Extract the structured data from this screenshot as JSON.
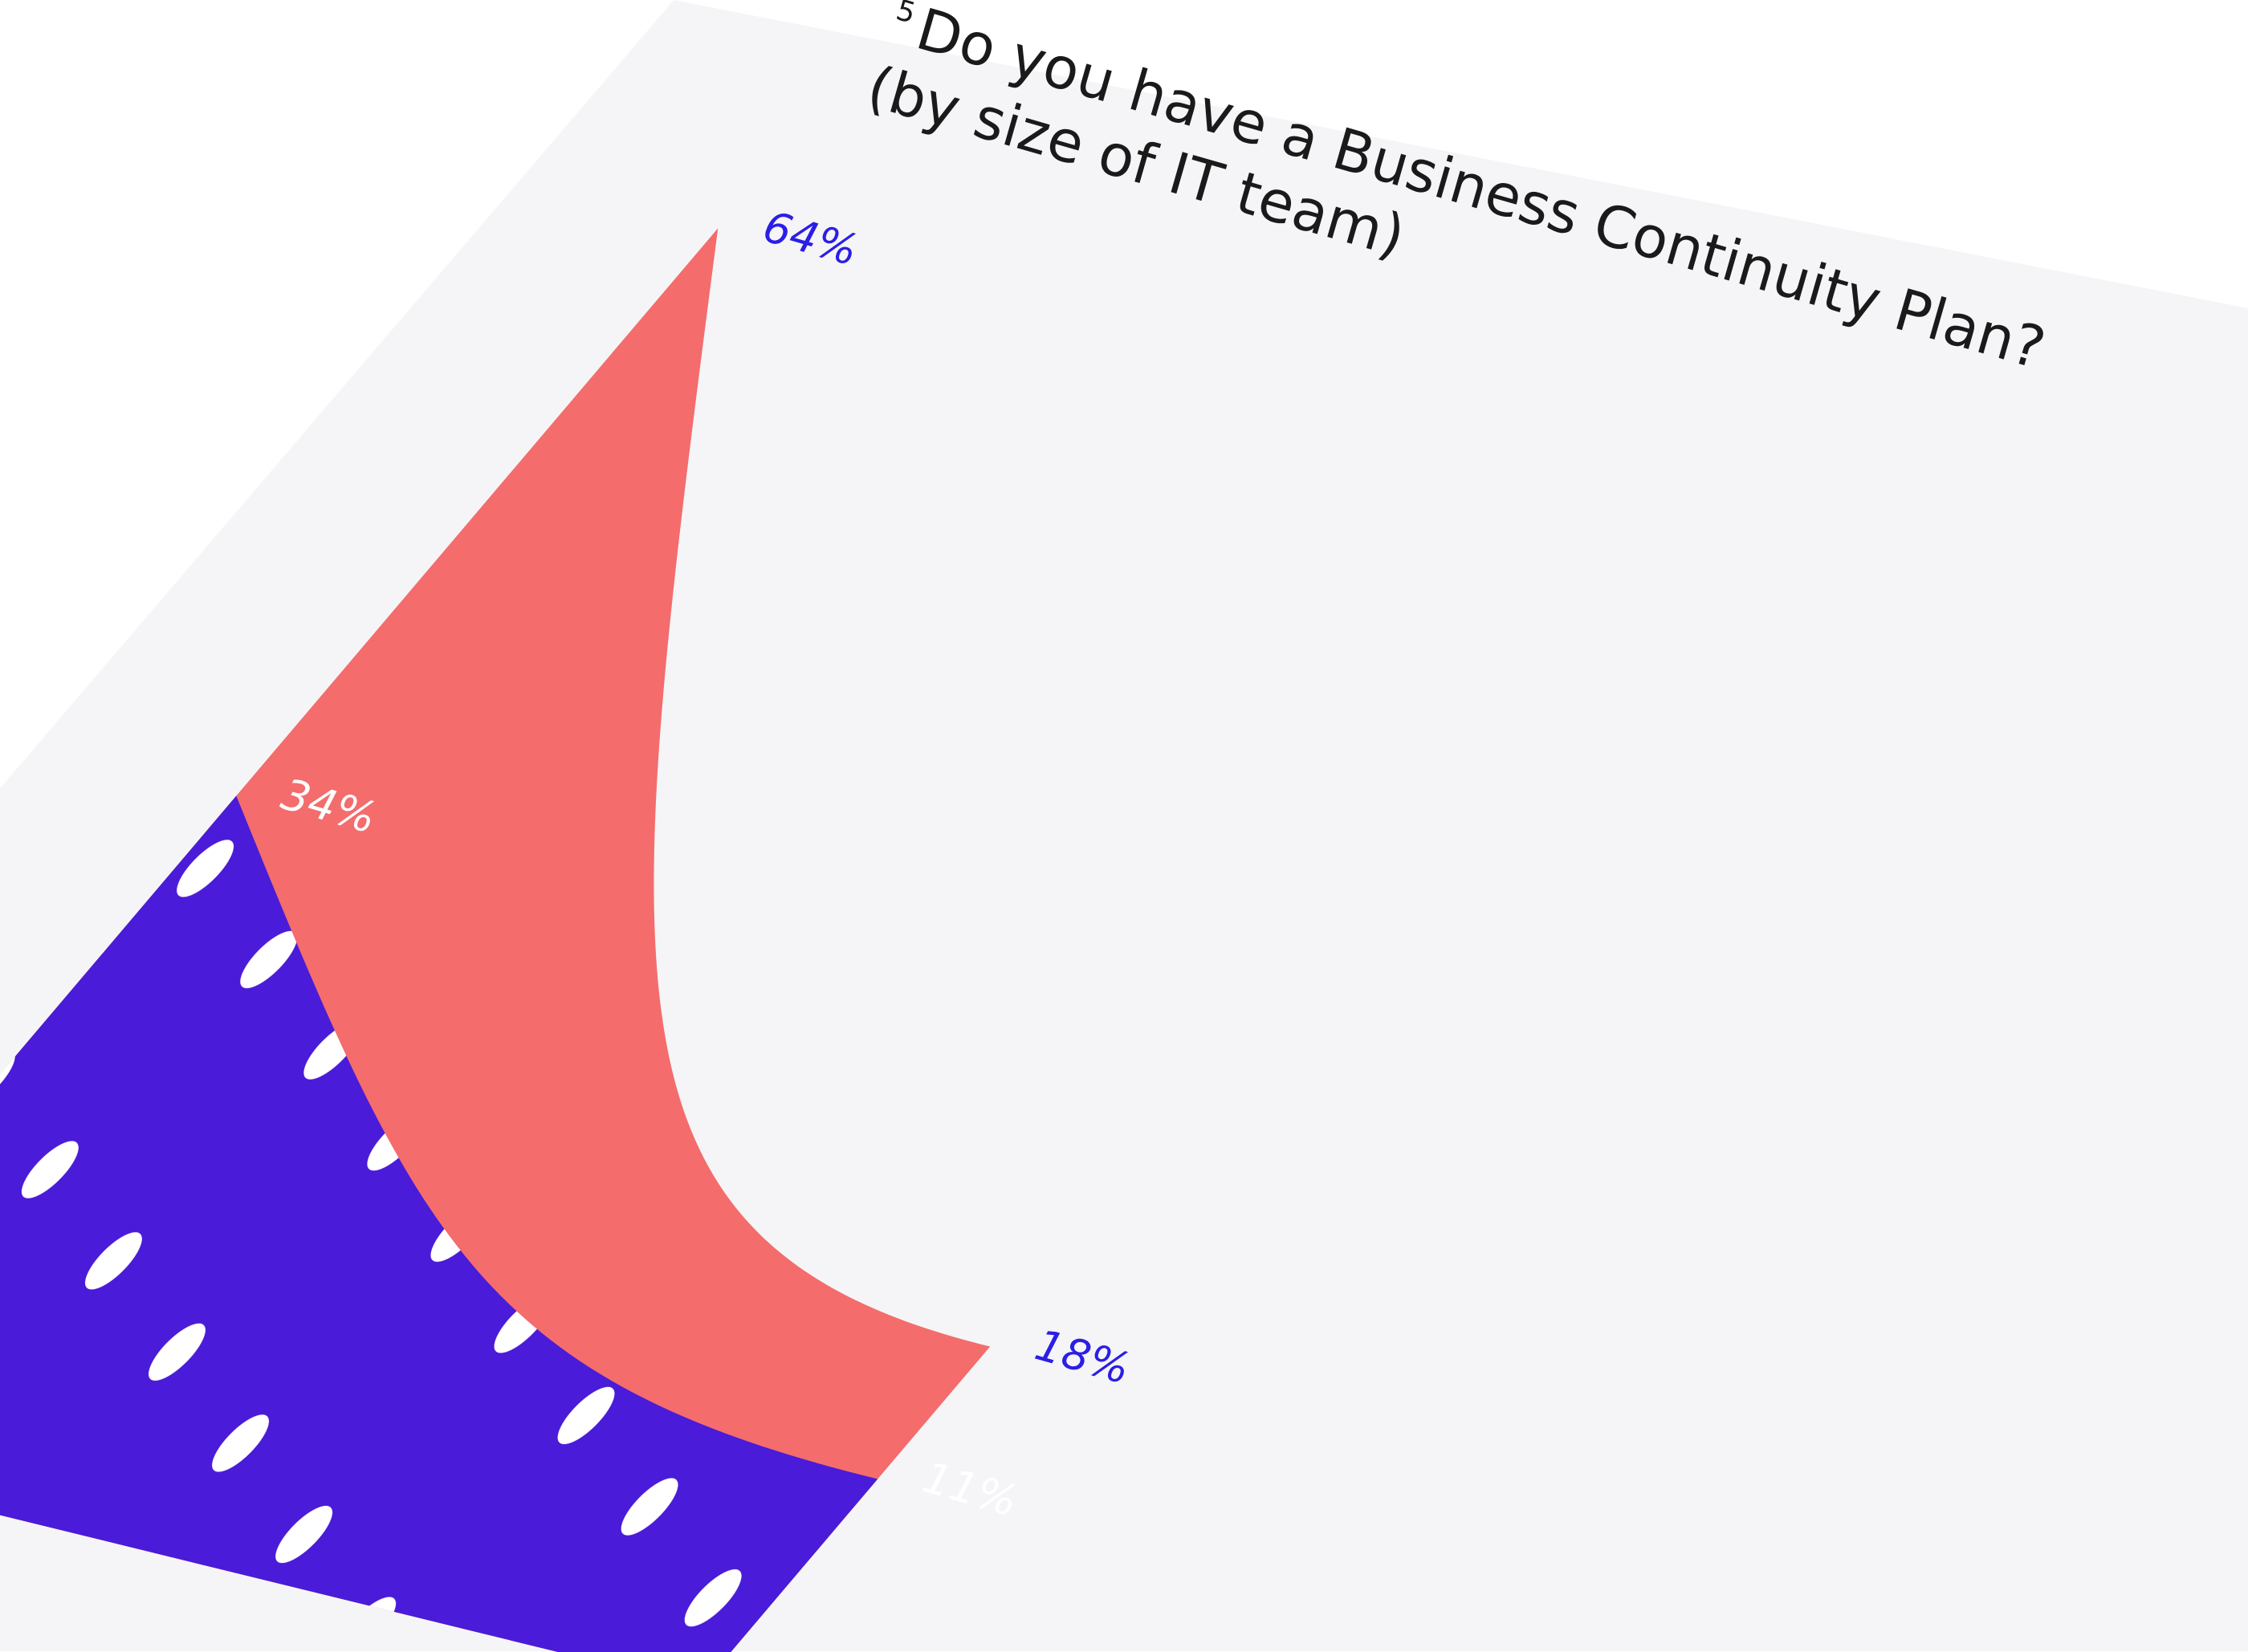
{
  "chart_data": {
    "type": "area",
    "title_marker": "5",
    "title": "Do you have a Business Continuity Plan?",
    "subtitle": "(by size of IT team)",
    "categories": [
      null,
      null
    ],
    "series": [
      {
        "color": "#f46c6c",
        "label_color": "#2b1ee6",
        "values": [
          64,
          18
        ],
        "value_labels": [
          "64%",
          "18%"
        ]
      },
      {
        "color": "#4a1bd8",
        "label_color": "#ffffff",
        "pattern": "dots",
        "values": [
          34,
          11
        ],
        "value_labels": [
          "34%",
          "11%"
        ]
      }
    ]
  }
}
